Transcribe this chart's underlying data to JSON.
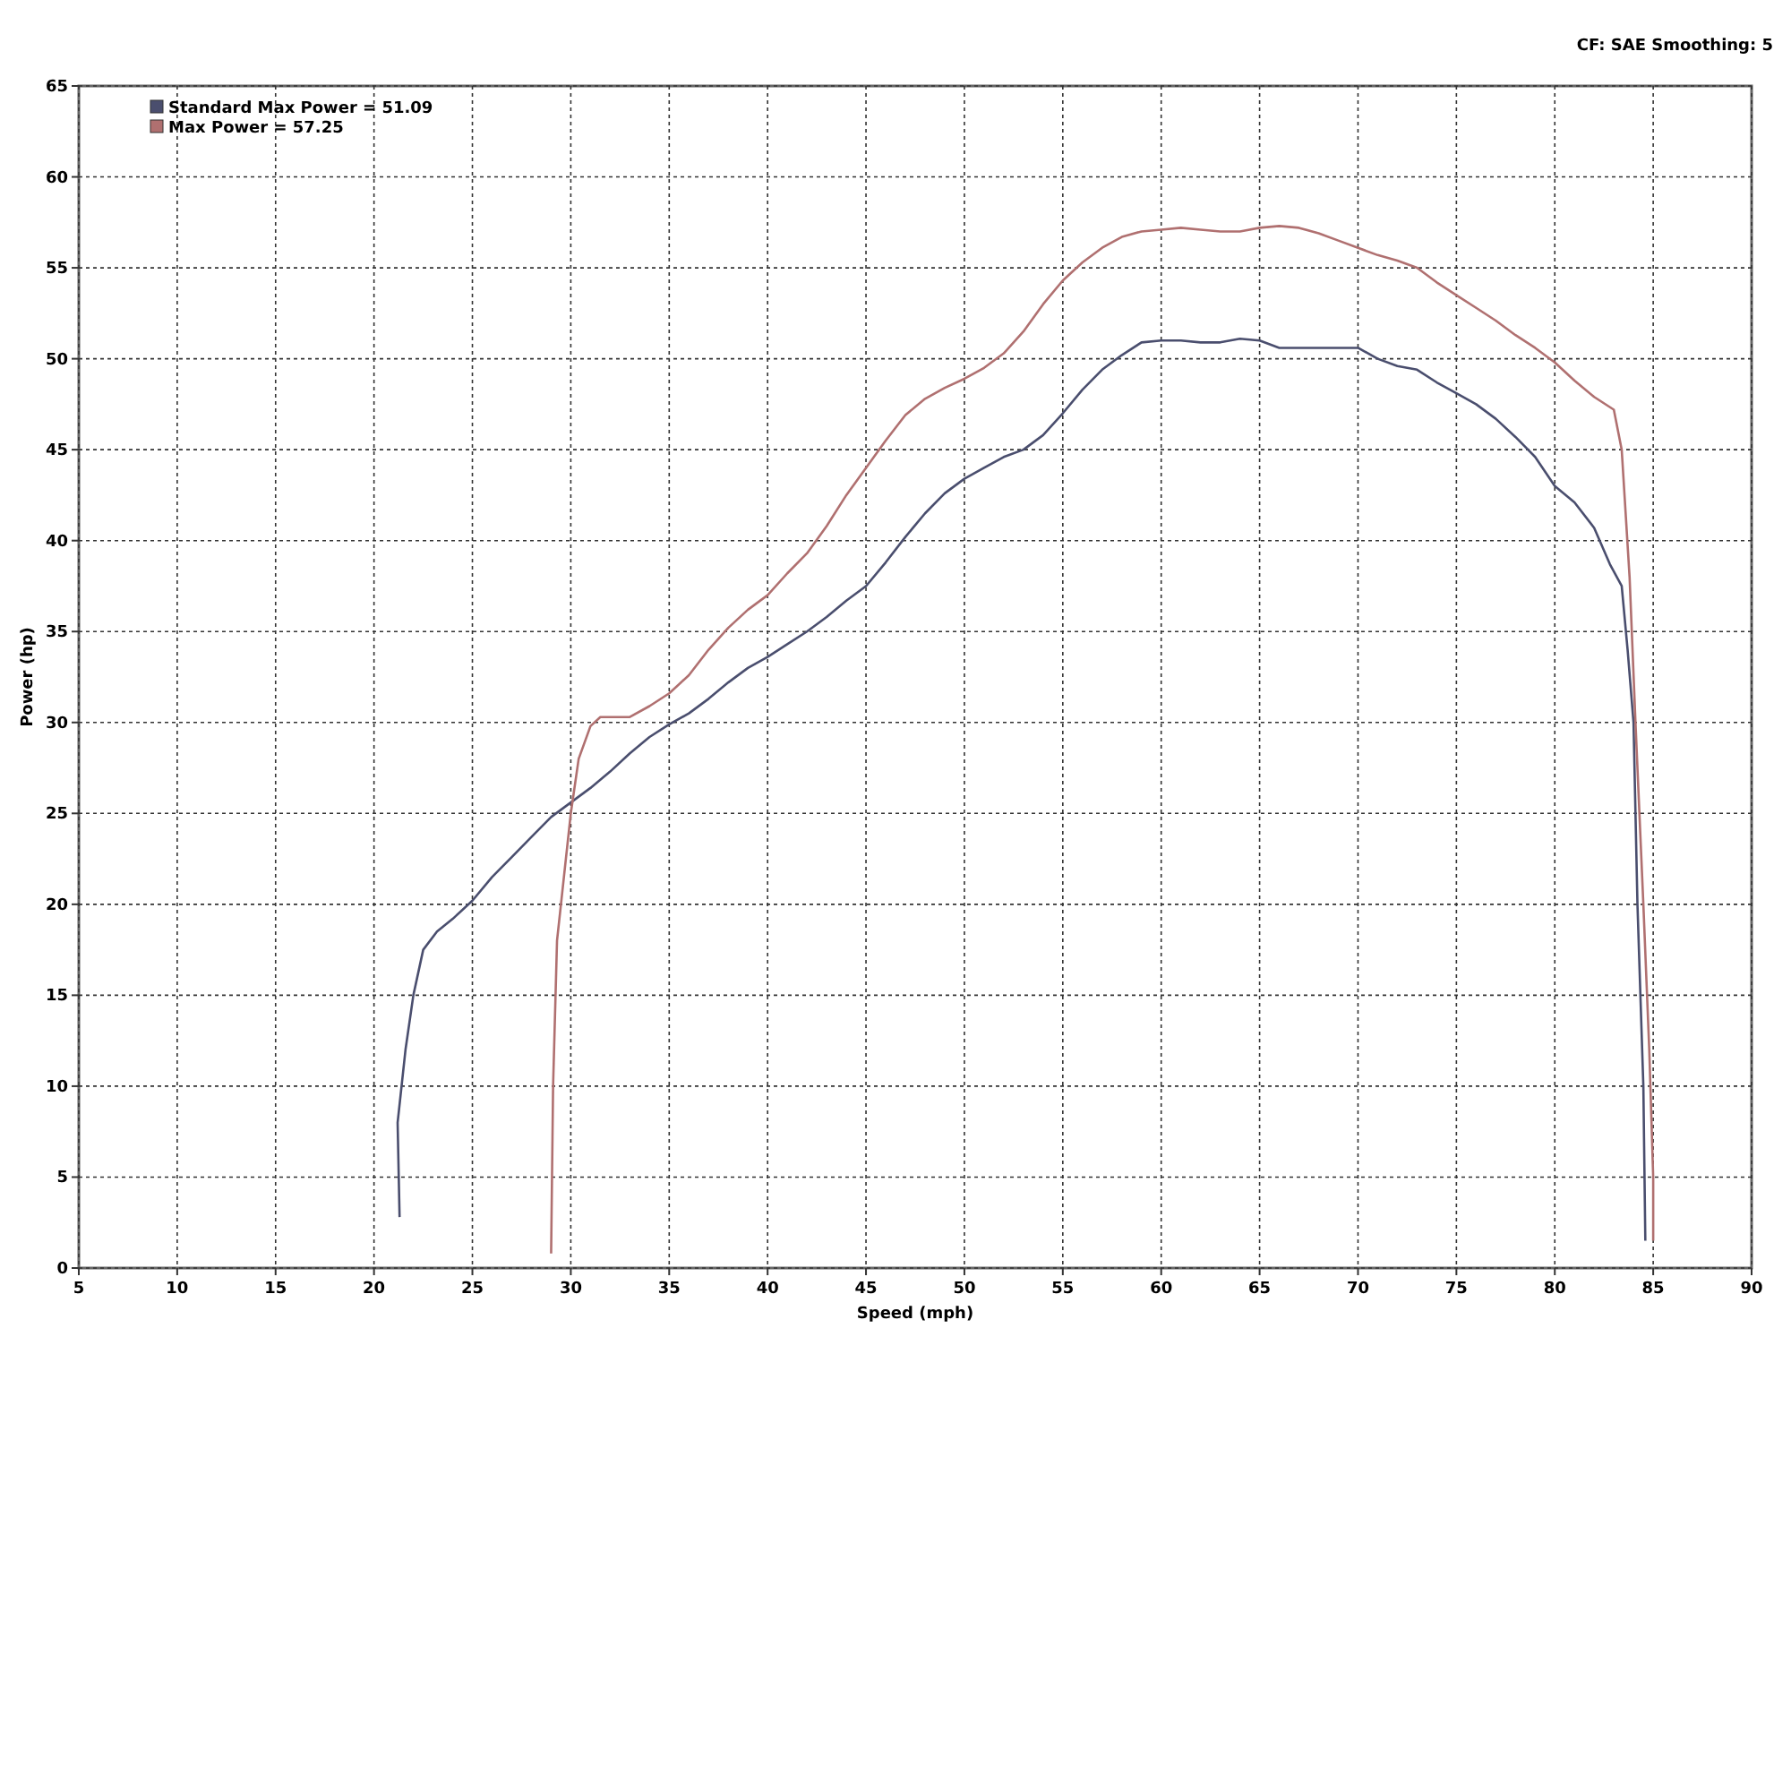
{
  "chart_data": {
    "type": "line",
    "xlabel": "Speed (mph)",
    "ylabel": "Power (hp)",
    "annotations": [
      "CF: SAE  Smoothing: 5"
    ],
    "xlim": [
      5,
      90
    ],
    "ylim": [
      0,
      65
    ],
    "xticks": [
      5,
      10,
      15,
      20,
      25,
      30,
      35,
      40,
      45,
      50,
      55,
      60,
      65,
      70,
      75,
      80,
      85,
      90
    ],
    "yticks": [
      0,
      5,
      10,
      15,
      20,
      25,
      30,
      35,
      40,
      45,
      50,
      55,
      60,
      65
    ],
    "grid": true,
    "legend": "top left",
    "series": [
      {
        "name": "Standard Max Power = 51.09",
        "color": "#4a4e6e",
        "x": [
          21.3,
          21.2,
          21.6,
          22,
          22.5,
          23.2,
          24,
          25,
          26,
          27,
          28,
          29,
          30,
          31,
          32,
          33,
          34,
          35,
          36,
          37,
          38,
          39,
          40,
          41,
          42,
          43,
          44,
          45,
          46,
          47,
          48,
          49,
          50,
          51,
          52,
          53,
          54,
          55,
          56,
          57,
          58,
          59,
          60,
          61,
          62,
          63,
          64,
          65,
          66,
          67,
          68,
          69,
          70,
          71,
          72,
          73,
          74,
          75,
          76,
          77,
          78,
          79,
          80,
          81,
          82,
          82.8,
          83.4,
          83.7,
          84,
          84.2,
          84.5,
          84.6
        ],
        "values": [
          2.8,
          8,
          12,
          15,
          17.5,
          18.5,
          19.2,
          20.2,
          21.5,
          22.6,
          23.7,
          24.8,
          25.6,
          26.4,
          27.3,
          28.3,
          29.2,
          29.9,
          30.5,
          31.3,
          32.2,
          33,
          33.6,
          34.3,
          35,
          35.8,
          36.7,
          37.5,
          38.8,
          40.2,
          41.5,
          42.6,
          43.4,
          44,
          44.6,
          45,
          45.8,
          47,
          48.3,
          49.4,
          50.2,
          50.9,
          51,
          51,
          50.9,
          50.9,
          51.1,
          51,
          50.6,
          50.6,
          50.6,
          50.6,
          50.6,
          50,
          49.6,
          49.4,
          48.7,
          48.1,
          47.5,
          46.7,
          45.7,
          44.6,
          43,
          42.1,
          40.7,
          38.7,
          37.5,
          34,
          30,
          20,
          10,
          1.5
        ]
      },
      {
        "name": "Max Power = 57.25",
        "color": "#b07070",
        "x": [
          29,
          29.1,
          29.3,
          29.7,
          30,
          30.4,
          31,
          31.5,
          32,
          33,
          34,
          35,
          36,
          37,
          38,
          39,
          40,
          41,
          42,
          43,
          44,
          45,
          46,
          47,
          48,
          49,
          50,
          51,
          52,
          53,
          54,
          55,
          56,
          57,
          58,
          59,
          60,
          61,
          62,
          63,
          64,
          65,
          66,
          67,
          68,
          69,
          70,
          71,
          72,
          73,
          74,
          75,
          76,
          77,
          78,
          79,
          80,
          81,
          82,
          83,
          83.4,
          83.8,
          84.1,
          84.5,
          84.8,
          85,
          85
        ],
        "values": [
          0.8,
          10,
          18,
          22,
          25,
          28,
          29.8,
          30.3,
          30.3,
          30.3,
          30.9,
          31.6,
          32.6,
          34,
          35.2,
          36.2,
          37,
          38.2,
          39.3,
          40.8,
          42.5,
          44,
          45.5,
          46.9,
          47.8,
          48.4,
          48.9,
          49.5,
          50.3,
          51.5,
          53,
          54.3,
          55.3,
          56.1,
          56.7,
          57,
          57.1,
          57.2,
          57.1,
          57,
          57,
          57.2,
          57.3,
          57.2,
          56.9,
          56.5,
          56.1,
          55.7,
          55.4,
          55,
          54.2,
          53.5,
          52.8,
          52.1,
          51.3,
          50.6,
          49.8,
          48.8,
          47.9,
          47.2,
          45,
          38,
          30,
          20,
          12,
          5,
          1.5
        ]
      }
    ]
  }
}
